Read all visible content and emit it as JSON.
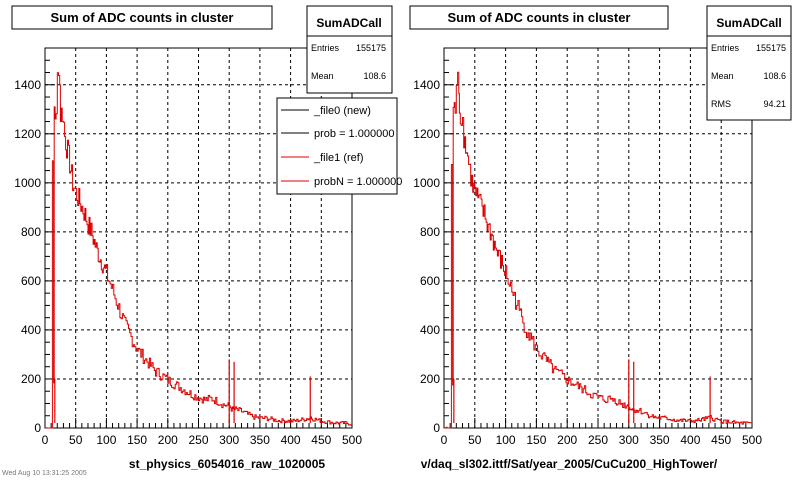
{
  "pads": [
    {
      "title": "Sum of ADC counts in cluster",
      "xlabel": "st_physics_6054016_raw_1020005",
      "stats": {
        "name": "SumADCall",
        "rows": [
          {
            "label": "Entries",
            "value": "155175"
          },
          {
            "label": "Mean",
            "value": "108.6"
          }
        ]
      },
      "legend": {
        "items": [
          {
            "label": "_file0 (new)",
            "color": "#000000"
          },
          {
            "label": "prob = 1.000000",
            "color": "#000000"
          },
          {
            "label": "_file1 (ref)",
            "color": "#dd0000"
          },
          {
            "label": "probN = 1.000000",
            "color": "#dd0000"
          }
        ]
      },
      "bottom_left_text": "Wed Aug 10 13:31:25 2005"
    },
    {
      "title": "Sum of ADC counts in cluster",
      "xlabel": "v/daq_sl302.ittf/Sat/year_2005/CuCu200_HighTower/",
      "stats": {
        "name": "SumADCall",
        "rows": [
          {
            "label": "Entries",
            "value": "155175"
          },
          {
            "label": "Mean",
            "value": "108.6"
          },
          {
            "label": "RMS",
            "value": "94.21"
          }
        ]
      }
    }
  ],
  "chart_data": [
    {
      "type": "line",
      "title": "Sum of ADC counts in cluster",
      "xlabel": "st_physics_6054016_raw_1020005",
      "ylabel": "",
      "xlim": [
        0,
        500
      ],
      "ylim": [
        0,
        1550
      ],
      "xticks": [
        0,
        50,
        100,
        150,
        200,
        250,
        300,
        350,
        400,
        450,
        500
      ],
      "yticks": [
        0,
        200,
        400,
        600,
        800,
        1000,
        1200,
        1400
      ],
      "grid": true,
      "series": [
        {
          "name": "_file1 (ref)",
          "color": "#dd0000",
          "x": [
            0,
            5,
            10,
            12,
            14,
            15,
            18,
            20,
            22,
            24,
            25,
            28,
            30,
            32,
            35,
            40,
            45,
            50,
            55,
            60,
            65,
            70,
            75,
            80,
            85,
            90,
            95,
            100,
            110,
            120,
            130,
            140,
            150,
            160,
            170,
            180,
            190,
            200,
            210,
            220,
            230,
            240,
            250,
            260,
            270,
            280,
            290,
            300,
            305,
            310,
            320,
            330,
            340,
            350,
            360,
            370,
            380,
            390,
            400,
            410,
            420,
            430,
            432,
            434,
            440,
            450,
            460,
            470,
            480,
            490,
            500
          ],
          "y": [
            0,
            0,
            0,
            1050,
            180,
            1320,
            1250,
            1430,
            1490,
            1400,
            1280,
            1290,
            1240,
            1190,
            1150,
            1080,
            1000,
            960,
            930,
            900,
            870,
            830,
            800,
            760,
            720,
            690,
            660,
            630,
            560,
            490,
            420,
            370,
            320,
            290,
            260,
            230,
            215,
            195,
            180,
            165,
            150,
            135,
            125,
            115,
            120,
            110,
            95,
            90,
            75,
            75,
            68,
            55,
            45,
            40,
            40,
            35,
            30,
            30,
            28,
            30,
            35,
            40,
            45,
            40,
            35,
            28,
            25,
            22,
            20,
            20,
            15
          ]
        }
      ],
      "spikes": [
        {
          "x": 16,
          "y": 200
        },
        {
          "x": 300,
          "y": 280
        },
        {
          "x": 308,
          "y": 270
        },
        {
          "x": 432,
          "y": 210
        }
      ],
      "legend": [
        "_file0 (new)",
        "prob = 1.000000",
        "_file1 (ref)",
        "probN = 1.000000"
      ],
      "stats": {
        "Entries": 155175,
        "Mean": 108.6
      }
    },
    {
      "type": "line",
      "title": "Sum of ADC counts in cluster",
      "xlabel": "v/daq_sl302.ittf/Sat/year_2005/CuCu200_HighTower/",
      "ylabel": "",
      "xlim": [
        0,
        500
      ],
      "ylim": [
        0,
        1550
      ],
      "xticks": [
        0,
        50,
        100,
        150,
        200,
        250,
        300,
        350,
        400,
        450,
        500
      ],
      "yticks": [
        0,
        200,
        400,
        600,
        800,
        1000,
        1200,
        1400
      ],
      "grid": true,
      "series": [
        {
          "name": "",
          "color": "#dd0000",
          "x": [
            0,
            5,
            10,
            12,
            14,
            15,
            18,
            20,
            22,
            24,
            25,
            28,
            30,
            32,
            35,
            40,
            45,
            50,
            55,
            60,
            65,
            70,
            75,
            80,
            85,
            90,
            95,
            100,
            110,
            120,
            130,
            140,
            150,
            160,
            170,
            180,
            190,
            200,
            210,
            220,
            230,
            240,
            250,
            260,
            270,
            280,
            290,
            300,
            305,
            310,
            320,
            330,
            340,
            350,
            360,
            370,
            380,
            390,
            400,
            410,
            420,
            430,
            432,
            434,
            440,
            450,
            460,
            470,
            480,
            490,
            500
          ],
          "y": [
            0,
            0,
            0,
            1050,
            180,
            1320,
            1250,
            1430,
            1490,
            1400,
            1280,
            1290,
            1240,
            1190,
            1150,
            1080,
            1000,
            960,
            930,
            900,
            870,
            830,
            800,
            760,
            720,
            690,
            660,
            630,
            560,
            490,
            420,
            370,
            320,
            290,
            260,
            230,
            215,
            195,
            180,
            165,
            150,
            135,
            125,
            115,
            120,
            110,
            95,
            90,
            75,
            75,
            68,
            55,
            45,
            40,
            40,
            35,
            30,
            30,
            28,
            30,
            35,
            40,
            45,
            40,
            35,
            28,
            25,
            22,
            20,
            20,
            15
          ]
        }
      ],
      "spikes": [
        {
          "x": 16,
          "y": 200
        },
        {
          "x": 300,
          "y": 280
        },
        {
          "x": 308,
          "y": 270
        },
        {
          "x": 432,
          "y": 210
        }
      ],
      "stats": {
        "Entries": 155175,
        "Mean": 108.6,
        "RMS": 94.21
      }
    }
  ]
}
